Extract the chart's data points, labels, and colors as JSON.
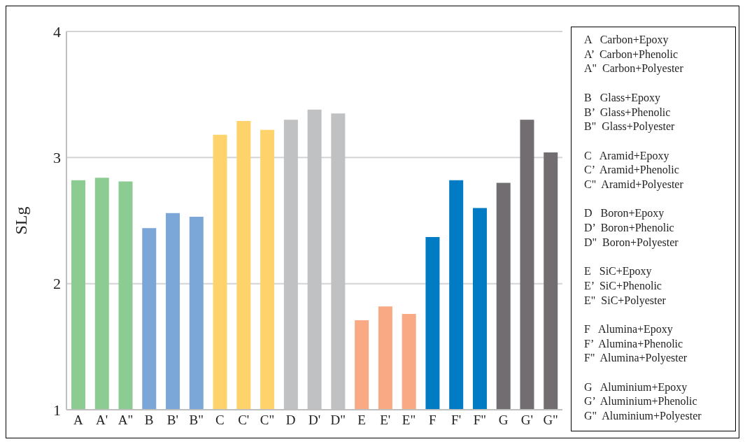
{
  "chart_data": {
    "type": "bar",
    "ylabel": "SLg",
    "categories": [
      "A",
      "A'",
      "A\"",
      "B",
      "B'",
      "B\"",
      "C",
      "C'",
      "C\"",
      "D",
      "D'",
      "D\"",
      "E",
      "E'",
      "E\"",
      "F",
      "F'",
      "F\"",
      "G",
      "G'",
      "G\""
    ],
    "values": [
      2.82,
      2.84,
      2.81,
      2.44,
      2.56,
      2.53,
      3.18,
      3.29,
      3.22,
      3.3,
      3.38,
      3.35,
      1.71,
      1.82,
      1.76,
      2.37,
      2.82,
      2.6,
      2.8,
      3.3,
      3.04
    ],
    "colors": [
      "#8ccb91",
      "#8ccb91",
      "#8ccb91",
      "#7ba7d8",
      "#7ba7d8",
      "#7ba7d8",
      "#ffd36b",
      "#ffd36b",
      "#ffd36b",
      "#c0c1c3",
      "#c0c1c3",
      "#c0c1c3",
      "#f9a983",
      "#f9a983",
      "#f9a983",
      "#007bc4",
      "#007bc4",
      "#007bc4",
      "#726d70",
      "#726d70",
      "#726d70"
    ],
    "ylim": [
      1,
      4
    ],
    "yticks": [
      1,
      2,
      3,
      4
    ],
    "grid": "y",
    "annotations": [
      "A   Carbon+Epoxy",
      "A’  Carbon+Phenolic",
      "A\"  Carbon+Polyester",
      "B   Glass+Epoxy",
      "B’  Glass+Phenolic",
      "B\"  Glass+Polyester",
      "C   Aramid+Epoxy",
      "C’  Aramid+Phenolic",
      "C\"  Aramid+Polyester",
      "D   Boron+Epoxy",
      "D’  Boron+Phenolic",
      "D\"  Boron+Polyester",
      "E   SiC+Epoxy",
      "E’  SiC+Phenolic",
      "E\"  SiC+Polyester",
      "F   Alumina+Epoxy",
      "F’  Alumina+Phenolic",
      "F\"  Alumina+Polyester",
      "G   Aluminium+Epoxy",
      "G’  Aluminium+Phenolic",
      "G\"  Aluminium+Polyester"
    ]
  }
}
